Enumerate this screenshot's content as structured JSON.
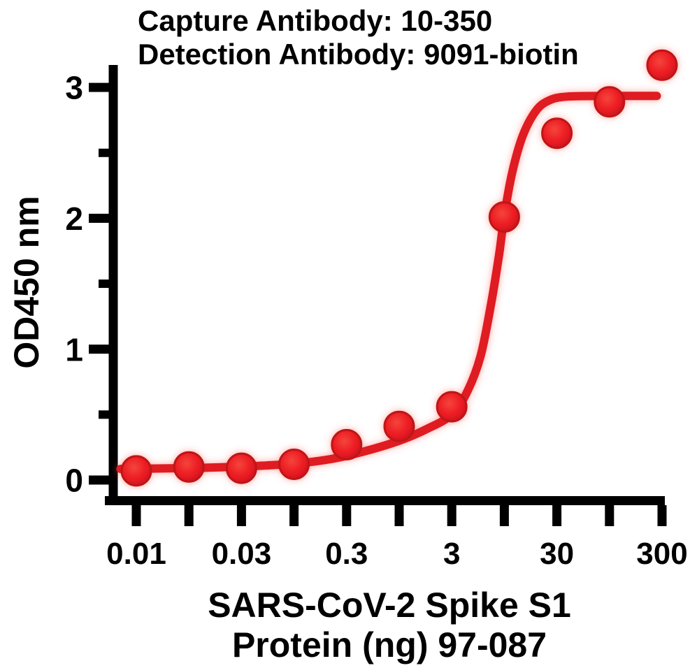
{
  "chart_data": {
    "type": "scatter",
    "title_lines": [
      "Capture Antibody: 10-350",
      "Detection Antibody: 9091-biotin"
    ],
    "x_axis": {
      "label_lines": [
        "SARS-CoV-2 Spike S1",
        "Protein (ng) 97-087"
      ],
      "scale": "log",
      "tick_labels": [
        "0.01",
        "",
        "0.03",
        "",
        "0.3",
        "",
        "3",
        "",
        "30",
        "",
        "300"
      ],
      "note": "11 evenly spaced ticks on a log-style dilution axis; labels on alternate ticks"
    },
    "y_axis": {
      "label": "OD450 nm",
      "major_ticks": [
        0,
        1,
        2,
        3
      ],
      "minor_ticks": [
        0.5,
        1.5,
        2.5
      ],
      "range": [
        0,
        3.35
      ]
    },
    "colors": {
      "marker": "#ED1C24",
      "marker_rim": "#BE1219",
      "line": "#DE1A21",
      "glow": "#FF5044",
      "axis_and_text": "#000000"
    },
    "series": [
      {
        "marker_color": "#ED1C24",
        "line_color": "#DE1A21",
        "points": [
          {
            "tick_index": 0,
            "od450": 0.07
          },
          {
            "tick_index": 1,
            "od450": 0.1
          },
          {
            "tick_index": 2,
            "od450": 0.09
          },
          {
            "tick_index": 3,
            "od450": 0.12
          },
          {
            "tick_index": 4,
            "od450": 0.27
          },
          {
            "tick_index": 5,
            "od450": 0.41
          },
          {
            "tick_index": 6,
            "od450": 0.56
          },
          {
            "tick_index": 7,
            "od450": 2.01
          },
          {
            "tick_index": 8,
            "od450": 2.65
          },
          {
            "tick_index": 9,
            "od450": 2.89
          },
          {
            "tick_index": 10,
            "od450": 3.17
          }
        ],
        "fit_curve": {
          "baseline_od": 0.085,
          "plateau_od": 2.93,
          "samples_tick_od": [
            [
              -0.3,
              0.085
            ],
            [
              0,
              0.086
            ],
            [
              1,
              0.092
            ],
            [
              2,
              0.103
            ],
            [
              3,
              0.125
            ],
            [
              3.7,
              0.16
            ],
            [
              4.3,
              0.215
            ],
            [
              5,
              0.3
            ],
            [
              5.5,
              0.385
            ],
            [
              6,
              0.5
            ],
            [
              6.3,
              0.68
            ],
            [
              6.55,
              0.95
            ],
            [
              6.75,
              1.35
            ],
            [
              6.9,
              1.72
            ],
            [
              7.0,
              2.02
            ],
            [
              7.15,
              2.35
            ],
            [
              7.35,
              2.63
            ],
            [
              7.6,
              2.82
            ],
            [
              7.85,
              2.9
            ],
            [
              8.2,
              2.93
            ],
            [
              9.0,
              2.935
            ],
            [
              9.9,
              2.935
            ]
          ]
        }
      }
    ]
  }
}
